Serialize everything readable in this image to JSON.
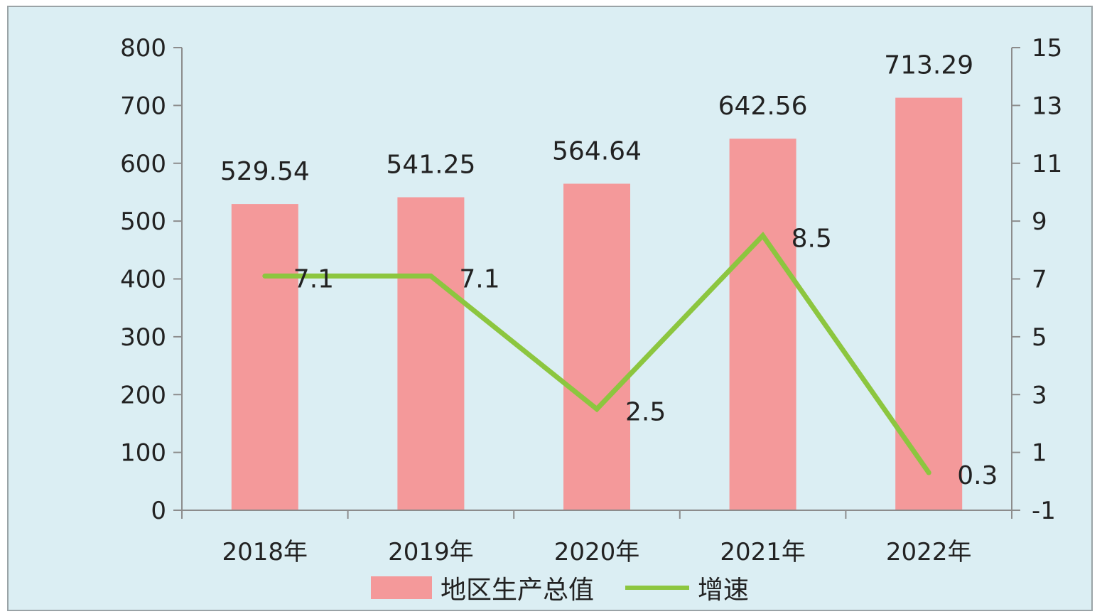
{
  "chart_data": {
    "type": "bar",
    "categories": [
      "2018年",
      "2019年",
      "2020年",
      "2021年",
      "2022年"
    ],
    "series": [
      {
        "name": "地区生产总值",
        "type": "bar",
        "axis": "left",
        "values": [
          529.54,
          541.25,
          564.64,
          642.56,
          713.29
        ],
        "labels": [
          "529.54",
          "541.25",
          "564.64",
          "642.56",
          "713.29"
        ],
        "color": "#f4999a"
      },
      {
        "name": "增速",
        "type": "line",
        "axis": "right",
        "values": [
          7.1,
          7.1,
          2.5,
          8.5,
          0.3
        ],
        "labels": [
          "7.1",
          "7.1",
          "2.5",
          "8.5",
          "0.3"
        ],
        "color": "#8cc63f"
      }
    ],
    "y_left": {
      "ylim": [
        0,
        800
      ],
      "ticks": [
        "0",
        "100",
        "200",
        "300",
        "400",
        "500",
        "600",
        "700",
        "800"
      ]
    },
    "y_right": {
      "ylim": [
        -1,
        15
      ],
      "ticks": [
        "-1",
        "1",
        "3",
        "5",
        "7",
        "9",
        "11",
        "13",
        "15"
      ]
    },
    "title": "",
    "xlabel": "",
    "ylabel": "",
    "grid": false,
    "legend_position": "bottom"
  }
}
